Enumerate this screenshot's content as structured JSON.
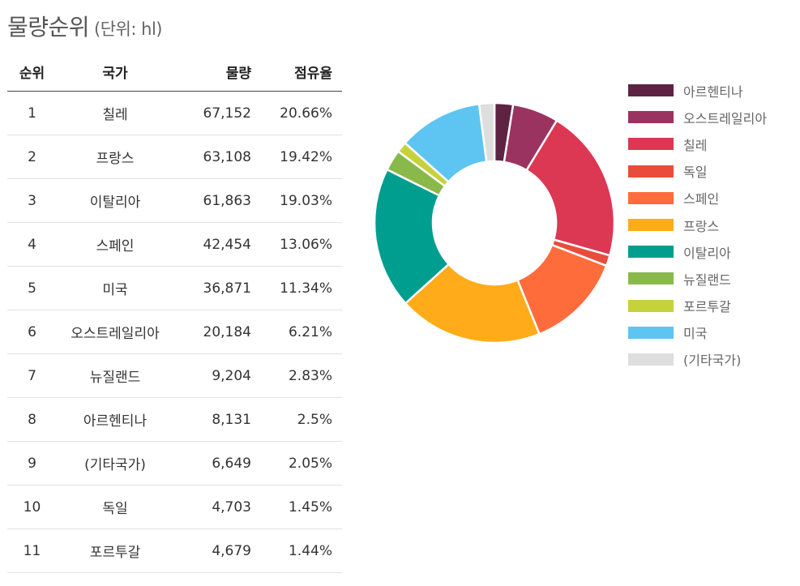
{
  "title": {
    "main": "물량순위",
    "unit": "(단위: hl)"
  },
  "table": {
    "headers": [
      "순위",
      "국가",
      "물량",
      "점유율"
    ],
    "rows": [
      {
        "rank": "1",
        "country": "칠레",
        "volume": "67,152",
        "share": "20.66%"
      },
      {
        "rank": "2",
        "country": "프랑스",
        "volume": "63,108",
        "share": "19.42%"
      },
      {
        "rank": "3",
        "country": "이탈리아",
        "volume": "61,863",
        "share": "19.03%"
      },
      {
        "rank": "4",
        "country": "스페인",
        "volume": "42,454",
        "share": "13.06%"
      },
      {
        "rank": "5",
        "country": "미국",
        "volume": "36,871",
        "share": "11.34%"
      },
      {
        "rank": "6",
        "country": "오스트레일리아",
        "volume": "20,184",
        "share": "6.21%"
      },
      {
        "rank": "7",
        "country": "뉴질랜드",
        "volume": "9,204",
        "share": "2.83%"
      },
      {
        "rank": "8",
        "country": "아르헨티나",
        "volume": "8,131",
        "share": "2.5%"
      },
      {
        "rank": "9",
        "country": "(기타국가)",
        "volume": "6,649",
        "share": "2.05%"
      },
      {
        "rank": "10",
        "country": "독일",
        "volume": "4,703",
        "share": "1.45%"
      },
      {
        "rank": "11",
        "country": "포르투갈",
        "volume": "4,679",
        "share": "1.44%"
      }
    ]
  },
  "chart_data": {
    "type": "pie",
    "variant": "donut",
    "legend_position": "right",
    "start_angle_deg": 0,
    "direction": "clockwise",
    "slices": [
      {
        "label": "아르헨티나",
        "value": 8131,
        "color": "#5e2342"
      },
      {
        "label": "오스트레일리아",
        "value": 20184,
        "color": "#9b3361"
      },
      {
        "label": "칠레",
        "value": 67152,
        "color": "#dc3753"
      },
      {
        "label": "독일",
        "value": 4703,
        "color": "#ea4c3b"
      },
      {
        "label": "스페인",
        "value": 42454,
        "color": "#ff6c3c"
      },
      {
        "label": "프랑스",
        "value": 63108,
        "color": "#ffab1a"
      },
      {
        "label": "이탈리아",
        "value": 61863,
        "color": "#009e8f"
      },
      {
        "label": "뉴질랜드",
        "value": 9204,
        "color": "#89b94a"
      },
      {
        "label": "포르투갈",
        "value": 4679,
        "color": "#c6d23a"
      },
      {
        "label": "미국",
        "value": 36871,
        "color": "#5ec4f2"
      },
      {
        "label": "(기타국가)",
        "value": 6649,
        "color": "#dedede"
      }
    ]
  }
}
